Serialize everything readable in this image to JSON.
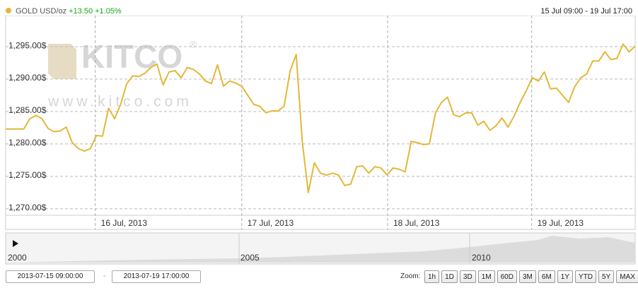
{
  "chart_data": {
    "type": "line",
    "title": "GOLD USD/oz",
    "change": "+13.50",
    "change_percent": "+1.05%",
    "range_label": "15 Jul 09:00 - 19 Jul 17:00",
    "watermark": "KITCO",
    "watermark_mark": "®",
    "watermark_url": "www.kitco.com",
    "color": "#e2b83a",
    "values": [
      1282.3,
      1282.3,
      1282.3,
      1282.3,
      1283.9,
      1284.4,
      1283.9,
      1282.4,
      1281.9,
      1282.0,
      1282.6,
      1280.2,
      1279.3,
      1278.9,
      1279.3,
      1281.3,
      1281.2,
      1285.5,
      1283.9,
      1286.1,
      1289.3,
      1290.5,
      1290.4,
      1290.9,
      1291.8,
      1292.3,
      1289.1,
      1291.1,
      1291.3,
      1290.2,
      1291.8,
      1291.5,
      1290.8,
      1289.7,
      1289.3,
      1292.2,
      1288.9,
      1289.7,
      1289.4,
      1288.9,
      1287.5,
      1286.1,
      1285.8,
      1284.8,
      1285.1,
      1285.1,
      1285.8,
      1291.3,
      1293.8,
      1280.4,
      1272.5,
      1277.1,
      1275.5,
      1275.2,
      1275.5,
      1275.2,
      1273.6,
      1273.8,
      1276.5,
      1276.6,
      1275.5,
      1276.5,
      1276.3,
      1275.2,
      1276.3,
      1276.1,
      1275.7,
      1280.4,
      1280.2,
      1279.9,
      1280.0,
      1284.8,
      1286.4,
      1287.2,
      1284.5,
      1284.2,
      1284.8,
      1284.8,
      1282.9,
      1283.5,
      1282.1,
      1282.8,
      1284.0,
      1282.6,
      1284.3,
      1286.4,
      1288.2,
      1290.2,
      1289.7,
      1291.1,
      1288.5,
      1288.6,
      1287.5,
      1286.4,
      1288.8,
      1290.2,
      1290.8,
      1292.8,
      1292.8,
      1294.2,
      1293.0,
      1293.2,
      1295.4,
      1294.2,
      1295.1
    ],
    "xlim": [
      0,
      104
    ],
    "xticks": [
      {
        "value": 14.8,
        "label": "16 Jul, 2013"
      },
      {
        "value": 39,
        "label": "17 Jul, 2013"
      },
      {
        "value": 63.1,
        "label": "18 Jul, 2013"
      },
      {
        "value": 86.9,
        "label": "19 Jul, 2013"
      }
    ],
    "ylim": [
      1269,
      1299.8
    ],
    "yticks": [
      {
        "value": 1295,
        "label": "1,295.00$"
      },
      {
        "value": 1290,
        "label": "1,290.00$"
      },
      {
        "value": 1285,
        "label": "1,285.00$"
      },
      {
        "value": 1280,
        "label": "1,280.00$"
      },
      {
        "value": 1275,
        "label": "1,275.00$"
      },
      {
        "value": 1270,
        "label": "1,270.00$"
      }
    ],
    "grid": true,
    "navigator_labels": [
      "2000",
      "2005",
      "2010"
    ]
  },
  "controls": {
    "start": "2013-07-15 09:00:00",
    "separator": "-",
    "end": "2013-07-19 17:00:00",
    "zoom_label": "Zoom:",
    "zoom_buttons": [
      "1h",
      "1D",
      "3D",
      "1M",
      "60D",
      "3M",
      "6M",
      "1Y",
      "YTD",
      "5Y",
      "MAX"
    ]
  }
}
